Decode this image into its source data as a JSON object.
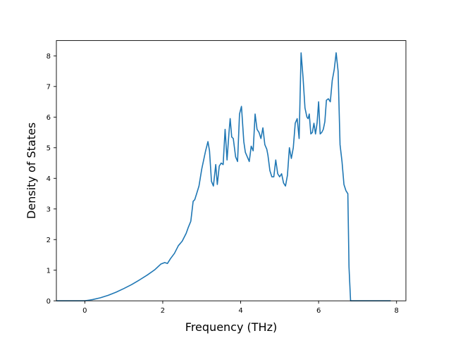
{
  "chart_data": {
    "type": "line",
    "title": "",
    "xlabel": "Frequency (THz)",
    "ylabel": "Density of States",
    "xlim": [
      -0.73,
      8.24
    ],
    "ylim": [
      0,
      8.5
    ],
    "xticks": [
      0,
      2,
      4,
      6,
      8
    ],
    "yticks": [
      0,
      1,
      2,
      3,
      4,
      5,
      6,
      7,
      8
    ],
    "xtick_labels": [
      "0",
      "2",
      "4",
      "6",
      "8"
    ],
    "ytick_labels": [
      "0",
      "1",
      "2",
      "3",
      "4",
      "5",
      "6",
      "7",
      "8"
    ],
    "grid": false,
    "series": [
      {
        "color": "#1f77b4",
        "x": [
          -0.73,
          -0.4,
          0.0,
          0.2,
          0.4,
          0.6,
          0.8,
          1.0,
          1.2,
          1.4,
          1.6,
          1.8,
          1.95,
          2.05,
          2.12,
          2.2,
          2.3,
          2.4,
          2.5,
          2.6,
          2.65,
          2.72,
          2.78,
          2.82,
          2.87,
          2.93,
          3.0,
          3.1,
          3.16,
          3.2,
          3.25,
          3.3,
          3.36,
          3.4,
          3.45,
          3.5,
          3.55,
          3.6,
          3.65,
          3.7,
          3.73,
          3.77,
          3.81,
          3.84,
          3.87,
          3.92,
          3.97,
          4.02,
          4.08,
          4.12,
          4.17,
          4.22,
          4.27,
          4.32,
          4.37,
          4.42,
          4.47,
          4.52,
          4.57,
          4.62,
          4.67,
          4.7,
          4.75,
          4.8,
          4.85,
          4.9,
          4.95,
          5.0,
          5.05,
          5.1,
          5.15,
          5.2,
          5.25,
          5.3,
          5.35,
          5.4,
          5.45,
          5.5,
          5.55,
          5.6,
          5.65,
          5.7,
          5.73,
          5.76,
          5.8,
          5.84,
          5.88,
          5.92,
          5.96,
          6.0,
          6.04,
          6.08,
          6.12,
          6.16,
          6.2,
          6.25,
          6.3,
          6.35,
          6.4,
          6.45,
          6.5,
          6.55,
          6.6,
          6.65,
          6.7,
          6.75,
          6.78,
          6.82,
          6.86,
          6.9,
          6.95,
          7.0,
          7.05,
          7.08,
          7.12,
          7.2,
          7.5,
          7.85
        ],
        "y": [
          0,
          0,
          0,
          0.04,
          0.1,
          0.18,
          0.28,
          0.4,
          0.53,
          0.68,
          0.84,
          1.02,
          1.2,
          1.25,
          1.22,
          1.38,
          1.55,
          1.8,
          1.95,
          2.2,
          2.38,
          2.6,
          3.25,
          3.3,
          3.5,
          3.75,
          4.3,
          4.9,
          5.2,
          4.9,
          3.9,
          3.75,
          4.45,
          3.8,
          4.4,
          4.5,
          4.45,
          5.6,
          4.6,
          5.5,
          5.95,
          5.35,
          5.3,
          5.0,
          4.7,
          4.55,
          6.1,
          6.35,
          5.2,
          4.85,
          4.7,
          4.55,
          5.05,
          4.9,
          6.1,
          5.6,
          5.5,
          5.3,
          5.65,
          5.1,
          4.95,
          4.75,
          4.25,
          4.05,
          4.05,
          4.6,
          4.15,
          4.05,
          4.15,
          3.85,
          3.75,
          4.1,
          5.0,
          4.65,
          5.0,
          5.8,
          5.95,
          5.3,
          8.1,
          7.3,
          6.3,
          6.0,
          5.95,
          6.1,
          5.45,
          5.5,
          5.8,
          5.45,
          5.8,
          6.5,
          5.45,
          5.5,
          5.6,
          5.85,
          6.55,
          6.6,
          6.5,
          7.2,
          7.55,
          8.1,
          7.5,
          5.1,
          4.55,
          3.8,
          3.6,
          3.5,
          1.1,
          0,
          0,
          0,
          0,
          0,
          0,
          0,
          0,
          0,
          0,
          0
        ]
      }
    ]
  }
}
